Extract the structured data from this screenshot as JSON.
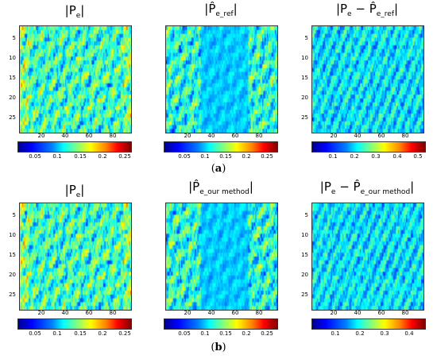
{
  "figure": {
    "caption_a": "a",
    "caption_b": "b"
  },
  "rows": [
    {
      "panels": [
        {
          "title_main": "|P",
          "title_sub": "e",
          "title_end": "|",
          "hat": false,
          "y_ticks": [
            "5",
            "10",
            "15",
            "20",
            "25"
          ],
          "x_ticks": [
            "20",
            "40",
            "60",
            "80"
          ],
          "cbar_ticks": [
            "0.05",
            "0.1",
            "0.15",
            "0.2",
            "0.25"
          ],
          "pattern": "full"
        },
        {
          "title_main": "|P̂",
          "title_sub": "e_ref",
          "title_end": "|",
          "hat": true,
          "y_ticks": [
            "5",
            "10",
            "15",
            "20",
            "25"
          ],
          "x_ticks": [
            "20",
            "40",
            "60",
            "80"
          ],
          "cbar_ticks": [
            "0.05",
            "0.1",
            "0.15",
            "0.2",
            "0.25"
          ],
          "pattern": "edges"
        },
        {
          "title_main": "|P",
          "title_sub": "e",
          "title_end": " − P̂",
          "title_sub2": "e_ref",
          "title_close": "|",
          "y_ticks": [
            "5",
            "10",
            "15",
            "20",
            "25"
          ],
          "x_ticks": [
            "20",
            "40",
            "60",
            "80"
          ],
          "cbar_ticks": [
            "0.1",
            "0.2",
            "0.3",
            "0.4",
            "0.5"
          ],
          "pattern": "diff"
        }
      ]
    },
    {
      "panels": [
        {
          "title_main": "|P",
          "title_sub": "e",
          "title_end": "|",
          "hat": false,
          "y_ticks": [
            "5",
            "10",
            "15",
            "20",
            "25"
          ],
          "x_ticks": [
            "20",
            "40",
            "60",
            "80"
          ],
          "cbar_ticks": [
            "0.05",
            "0.1",
            "0.15",
            "0.2",
            "0.25"
          ],
          "pattern": "full"
        },
        {
          "title_main": "|P̂",
          "title_sub": "e_our method",
          "title_end": "|",
          "hat": true,
          "y_ticks": [
            "5",
            "10",
            "15",
            "20",
            "25"
          ],
          "x_ticks": [
            "20",
            "40",
            "60",
            "80"
          ],
          "cbar_ticks": [
            "0.05",
            "0.1",
            "0.15",
            "0.2",
            "0.25"
          ],
          "pattern": "edges"
        },
        {
          "title_main": "|P",
          "title_sub": "e",
          "title_end": " − P̂",
          "title_sub2": "e_our method",
          "title_close": "|",
          "y_ticks": [
            "5",
            "10",
            "15",
            "20",
            "25"
          ],
          "x_ticks": [
            "20",
            "40",
            "60",
            "80"
          ],
          "cbar_ticks": [
            "0.1",
            "0.2",
            "0.3",
            "0.4"
          ],
          "pattern": "diff"
        }
      ]
    }
  ],
  "colors": {
    "low": "#00008f",
    "mid": "#00c8ff",
    "high": "#ffff00",
    "max": "#800000",
    "base": "#1e5fd8"
  }
}
